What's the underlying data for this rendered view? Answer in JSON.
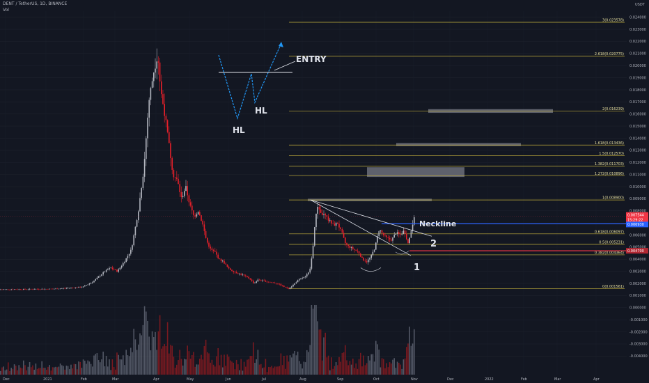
{
  "header": {
    "symbol_line": "DENT / TetherUS, 1D, BINANCE",
    "vol_label": "Vol"
  },
  "chart_data": {
    "type": "candlestick",
    "price_axis": {
      "unit": "USDT",
      "ticks": [
        "0.024000",
        "0.023000",
        "0.022000",
        "0.021000",
        "0.020000",
        "0.019000",
        "0.018000",
        "0.017000",
        "0.016000",
        "0.015000",
        "0.014000",
        "0.013000",
        "0.012000",
        "0.011000",
        "0.010000",
        "0.009000",
        "0.008000",
        "0.007000",
        "0.006000",
        "0.005000",
        "0.004000",
        "0.003000",
        "0.002000",
        "0.001000",
        "0.000000",
        "-0.001000",
        "-0.002000",
        "-0.003000",
        "-0.004000"
      ],
      "ylim": [
        -0.0045,
        0.0245
      ]
    },
    "time_axis": {
      "ticks": [
        "Dec",
        "2021",
        "Feb",
        "Mar",
        "Apr",
        "May",
        "Jun",
        "Jul",
        "Aug",
        "Sep",
        "Oct",
        "Nov",
        "Dec",
        "2022",
        "Feb",
        "Mar",
        "Apr"
      ]
    },
    "price_path": [
      [
        0,
        0.0015
      ],
      [
        40,
        0.00152
      ],
      [
        80,
        0.00155
      ],
      [
        120,
        0.0017
      ],
      [
        135,
        0.00215
      ],
      [
        150,
        0.0029
      ],
      [
        160,
        0.0033
      ],
      [
        170,
        0.003
      ],
      [
        180,
        0.0038
      ],
      [
        190,
        0.0048
      ],
      [
        200,
        0.008
      ],
      [
        208,
        0.0115
      ],
      [
        215,
        0.017
      ],
      [
        222,
        0.0195
      ],
      [
        228,
        0.021
      ],
      [
        232,
        0.018
      ],
      [
        238,
        0.016
      ],
      [
        244,
        0.0135
      ],
      [
        250,
        0.011
      ],
      [
        256,
        0.0105
      ],
      [
        262,
        0.009
      ],
      [
        268,
        0.01
      ],
      [
        274,
        0.0085
      ],
      [
        280,
        0.0075
      ],
      [
        286,
        0.008
      ],
      [
        292,
        0.007
      ],
      [
        298,
        0.0055
      ],
      [
        304,
        0.0048
      ],
      [
        310,
        0.0046
      ],
      [
        316,
        0.004
      ],
      [
        322,
        0.0038
      ],
      [
        330,
        0.0032
      ],
      [
        340,
        0.0029
      ],
      [
        350,
        0.0027
      ],
      [
        360,
        0.0024
      ],
      [
        366,
        0.002
      ],
      [
        372,
        0.0023
      ],
      [
        380,
        0.0022
      ],
      [
        390,
        0.0021
      ],
      [
        400,
        0.002
      ],
      [
        410,
        0.0017
      ],
      [
        416,
        0.0016
      ],
      [
        422,
        0.00185
      ],
      [
        428,
        0.0022
      ],
      [
        434,
        0.0024
      ],
      [
        440,
        0.00255
      ],
      [
        446,
        0.003
      ],
      [
        450,
        0.0045
      ],
      [
        454,
        0.0072
      ],
      [
        458,
        0.0085
      ],
      [
        462,
        0.0078
      ],
      [
        468,
        0.0076
      ],
      [
        474,
        0.0072
      ],
      [
        480,
        0.0068
      ],
      [
        486,
        0.007
      ],
      [
        492,
        0.0062
      ],
      [
        498,
        0.0052
      ],
      [
        504,
        0.005
      ],
      [
        510,
        0.0048
      ],
      [
        516,
        0.0046
      ],
      [
        522,
        0.004
      ],
      [
        528,
        0.0038
      ],
      [
        534,
        0.0042
      ],
      [
        540,
        0.005
      ],
      [
        546,
        0.0065
      ],
      [
        552,
        0.006
      ],
      [
        558,
        0.0057
      ],
      [
        564,
        0.0056
      ],
      [
        570,
        0.0062
      ],
      [
        576,
        0.006
      ],
      [
        582,
        0.0064
      ],
      [
        588,
        0.0052
      ],
      [
        592,
        0.0064
      ],
      [
        596,
        0.00754
      ]
    ],
    "current_price": {
      "value": "0.007544",
      "time_left": "15:29:22"
    },
    "neckline_price": {
      "value": "0.006930",
      "label": "Neckline"
    },
    "red_level_price": {
      "value": "0.004700"
    },
    "fib_levels": [
      {
        "ratio": "3",
        "price": "0.023578",
        "label": "3(0.023578)"
      },
      {
        "ratio": "2.618",
        "price": "0.020775",
        "label": "2.618(0.020775)"
      },
      {
        "ratio": "2",
        "price": "0.016239",
        "label": "2(0.016239)"
      },
      {
        "ratio": "1.618",
        "price": "0.013436",
        "label": "1.618(0.013436)"
      },
      {
        "ratio": "1.5",
        "price": "0.012570",
        "label": "1.5(0.012570)"
      },
      {
        "ratio": "1.382",
        "price": "0.011703",
        "label": "1.382(0.011703)"
      },
      {
        "ratio": "1.272",
        "price": "0.010896",
        "label": "1.272(0.010896)"
      },
      {
        "ratio": "1",
        "price": "0.008900",
        "label": "1(0.008900)"
      },
      {
        "ratio": "0.618",
        "price": "0.006097",
        "label": "0.618(0.006097)"
      },
      {
        "ratio": "0.5",
        "price": "0.005231",
        "label": "0.5(0.005231)"
      },
      {
        "ratio": "0.382",
        "price": "0.004364",
        "label": "0.382(0.004364)"
      },
      {
        "ratio": "0",
        "price": "0.001561",
        "label": "0(0.001561)"
      }
    ],
    "annotations": {
      "entry": "ENTRY",
      "hl_left": "HL",
      "hl_right": "HL",
      "line1": "1",
      "line2": "2",
      "neckline": "Neckline"
    }
  },
  "colors": {
    "bg": "#131722",
    "up": "#b2b5be",
    "down": "#e8202a",
    "fib": "#c9b53c",
    "neckline": "#2962ff",
    "redline": "#f23645",
    "zone": "#787b86",
    "pattern": "#2196f3"
  }
}
